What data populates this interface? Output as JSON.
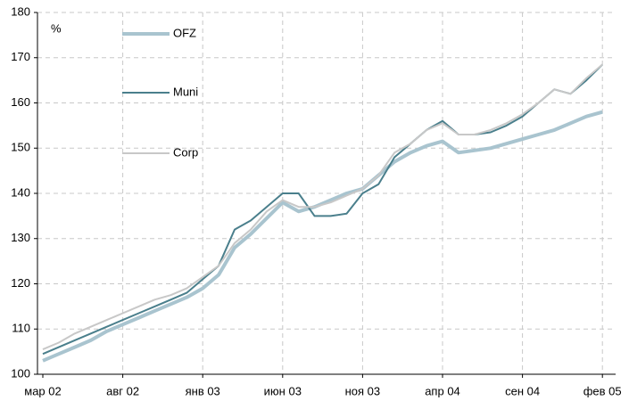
{
  "chart_data": {
    "type": "line",
    "y_label": "%",
    "categories": [
      "мар 02",
      null,
      null,
      null,
      null,
      "авг 02",
      null,
      null,
      null,
      null,
      "янв 03",
      null,
      null,
      null,
      null,
      "июн 03",
      null,
      null,
      null,
      null,
      "ноя 03",
      null,
      null,
      null,
      null,
      "апр 04",
      null,
      null,
      null,
      null,
      "сен 04",
      null,
      null,
      null,
      null,
      "фев 05"
    ],
    "series": [
      {
        "name": "OFZ",
        "color": "#a9c4cf",
        "values": [
          103,
          104.5,
          106,
          107.5,
          109.5,
          111,
          112.5,
          114,
          115.5,
          117,
          119,
          122,
          128,
          131,
          134.5,
          138,
          136,
          137,
          138.5,
          140,
          141,
          144,
          147,
          149,
          150.5,
          151.5,
          149,
          149.5,
          150,
          151,
          152,
          153,
          154,
          155.5,
          157,
          158
        ]
      },
      {
        "name": "Muni",
        "color": "#4a7f8c",
        "values": [
          104.5,
          106,
          107.5,
          109,
          110.5,
          112,
          113.5,
          115,
          116.5,
          118,
          121,
          124,
          132,
          134,
          137,
          140,
          140,
          135,
          135,
          135.5,
          140,
          142,
          148,
          151,
          154,
          156,
          153,
          153,
          153.5,
          155,
          157,
          160,
          163,
          162,
          165,
          168.5
        ]
      },
      {
        "name": "Corp",
        "color": "#c8c8c8",
        "values": [
          105.5,
          107,
          109,
          110.5,
          112,
          113.5,
          115,
          116.5,
          117.5,
          119,
          121.5,
          124,
          129,
          132,
          136,
          138.5,
          137,
          137,
          138,
          139.5,
          141,
          144,
          149,
          151,
          154,
          155.5,
          153,
          153,
          154,
          155.5,
          157.5,
          160,
          163,
          162,
          165.5,
          168.5
        ]
      }
    ],
    "ylim": [
      100,
      180
    ],
    "yticks": [
      100,
      110,
      120,
      130,
      140,
      150,
      160,
      170,
      180
    ],
    "grid": true,
    "legend": "upper left"
  }
}
